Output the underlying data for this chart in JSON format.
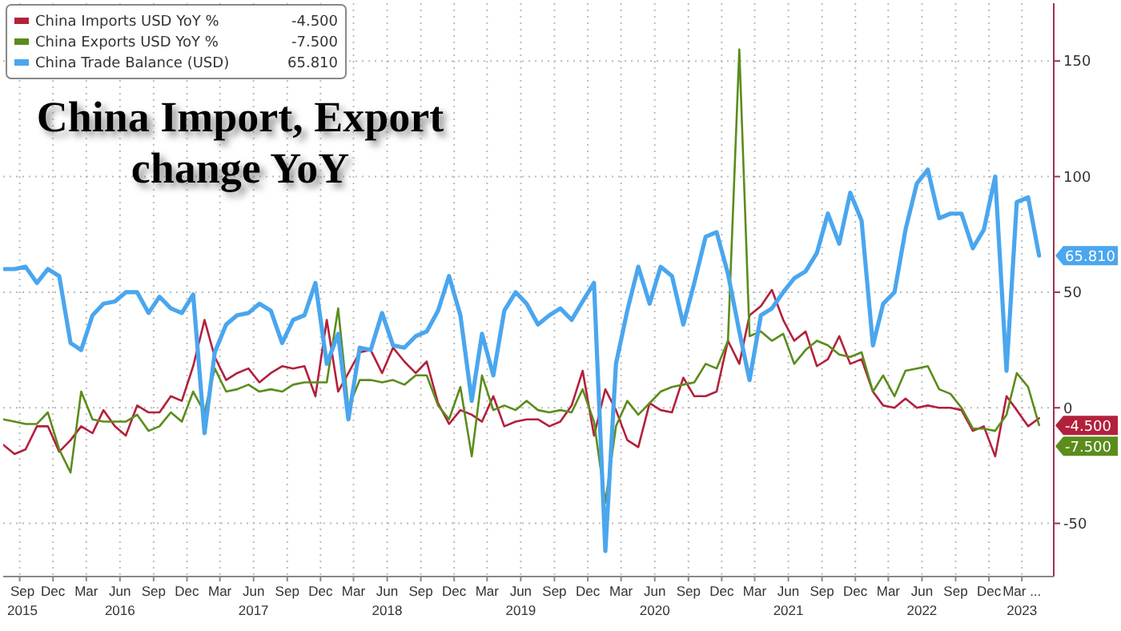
{
  "chart_data": {
    "type": "line",
    "title": "China Import, Export change YoY",
    "x": [
      "2015-08",
      "2015-09",
      "2015-10",
      "2015-11",
      "2015-12",
      "2016-01",
      "2016-02",
      "2016-03",
      "2016-04",
      "2016-05",
      "2016-06",
      "2016-07",
      "2016-08",
      "2016-09",
      "2016-10",
      "2016-11",
      "2016-12",
      "2017-01",
      "2017-02",
      "2017-03",
      "2017-04",
      "2017-05",
      "2017-06",
      "2017-07",
      "2017-08",
      "2017-09",
      "2017-10",
      "2017-11",
      "2017-12",
      "2018-01",
      "2018-02",
      "2018-03",
      "2018-04",
      "2018-05",
      "2018-06",
      "2018-07",
      "2018-08",
      "2018-09",
      "2018-10",
      "2018-11",
      "2018-12",
      "2019-01",
      "2019-02",
      "2019-03",
      "2019-04",
      "2019-05",
      "2019-06",
      "2019-07",
      "2019-08",
      "2019-09",
      "2019-10",
      "2019-11",
      "2019-12",
      "2020-01",
      "2020-02",
      "2020-03",
      "2020-04",
      "2020-05",
      "2020-06",
      "2020-07",
      "2020-08",
      "2020-09",
      "2020-10",
      "2020-11",
      "2020-12",
      "2021-01",
      "2021-02",
      "2021-03",
      "2021-04",
      "2021-05",
      "2021-06",
      "2021-07",
      "2021-08",
      "2021-09",
      "2021-10",
      "2021-11",
      "2021-12",
      "2022-01",
      "2022-02",
      "2022-03",
      "2022-04",
      "2022-05",
      "2022-06",
      "2022-07",
      "2022-08",
      "2022-09",
      "2022-10",
      "2022-11",
      "2022-12",
      "2023-01",
      "2023-02",
      "2023-03",
      "2023-04",
      "2023-05"
    ],
    "series": [
      {
        "name": "China Imports USD YoY %",
        "color": "#b3203c",
        "values": [
          -16,
          -20,
          -18,
          -8,
          -8,
          -19,
          -14,
          -8,
          -11,
          -1,
          -8,
          -12,
          1,
          -2,
          -2,
          5,
          3,
          18,
          38,
          22,
          12,
          15,
          17,
          11,
          15,
          18,
          17,
          18,
          5,
          38,
          7,
          15,
          24,
          25,
          15,
          26,
          20,
          15,
          20,
          2,
          -7,
          -1,
          -3,
          -6,
          5,
          -8,
          -6,
          -5,
          -5,
          -8,
          -6,
          1,
          16,
          -12,
          8,
          -1,
          -14,
          -17,
          2,
          -1,
          -2,
          13,
          5,
          5,
          7,
          29,
          19,
          40,
          44,
          51,
          38,
          29,
          33,
          18,
          21,
          31,
          19,
          21,
          7,
          1,
          0,
          4,
          0,
          1,
          0,
          0,
          -1,
          -10,
          -8,
          -21,
          5,
          -1,
          -8,
          -4.5
        ],
        "value_labels": [
          null,
          null,
          null,
          null,
          null,
          null,
          null,
          null,
          null,
          null,
          null,
          null,
          null,
          null,
          null,
          null,
          null,
          null,
          null,
          null,
          null,
          null,
          null,
          null,
          null,
          null,
          null,
          null,
          null,
          null,
          null,
          null,
          null,
          null,
          null,
          null,
          null,
          null,
          null,
          null,
          null,
          null,
          null,
          null,
          null,
          null,
          null,
          null,
          null,
          null,
          null,
          null,
          null,
          null,
          null,
          null,
          null,
          null,
          null,
          null,
          null,
          null,
          null,
          null,
          null,
          null,
          null,
          null,
          null,
          null,
          null,
          null,
          null,
          null,
          null,
          null,
          null,
          null,
          null,
          null,
          null,
          null,
          null,
          null,
          null,
          null,
          null,
          null,
          null,
          null,
          null,
          null,
          null,
          "-4.500"
        ]
      },
      {
        "name": "China Exports USD YoY %",
        "color": "#5b8c1c",
        "values": [
          -5,
          -6,
          -7,
          -7,
          -2,
          -18,
          -28,
          7,
          -5,
          -6,
          -6,
          -6,
          -3,
          -10,
          -8,
          -2,
          -6,
          7,
          -2,
          17,
          7,
          8,
          10,
          7,
          8,
          7,
          10,
          11,
          11,
          11,
          43,
          0,
          12,
          12,
          11,
          12,
          10,
          14,
          14,
          1,
          -5,
          9,
          -21,
          14,
          -1,
          1,
          -1,
          3,
          -1,
          -2,
          -1,
          -2,
          8,
          -6,
          -41,
          -8,
          3,
          -3,
          2,
          7,
          9,
          10,
          11,
          19,
          17,
          29,
          155,
          31,
          33,
          29,
          32,
          19,
          25,
          29,
          27,
          23,
          22,
          24,
          7,
          14,
          5,
          16,
          17,
          18,
          8,
          6,
          0,
          -9,
          -9,
          -10,
          -3,
          15,
          9,
          -7.5
        ],
        "value_labels": [
          null,
          null,
          null,
          null,
          null,
          null,
          null,
          null,
          null,
          null,
          null,
          null,
          null,
          null,
          null,
          null,
          null,
          null,
          null,
          null,
          null,
          null,
          null,
          null,
          null,
          null,
          null,
          null,
          null,
          null,
          null,
          null,
          null,
          null,
          null,
          null,
          null,
          null,
          null,
          null,
          null,
          null,
          null,
          null,
          null,
          null,
          null,
          null,
          null,
          null,
          null,
          null,
          null,
          null,
          null,
          null,
          null,
          null,
          null,
          null,
          null,
          null,
          null,
          null,
          null,
          null,
          null,
          null,
          null,
          null,
          null,
          null,
          null,
          null,
          null,
          null,
          null,
          null,
          null,
          null,
          null,
          null,
          null,
          null,
          null,
          null,
          null,
          null,
          null,
          null,
          null,
          null,
          null,
          "-7.500"
        ]
      },
      {
        "name": "China Trade Balance (USD)",
        "color": "#4aa6ee",
        "values": [
          60,
          60,
          61,
          54,
          60,
          57,
          28,
          25,
          40,
          45,
          46,
          50,
          50,
          41,
          48,
          43,
          41,
          49,
          -11,
          24,
          36,
          40,
          41,
          45,
          42,
          28,
          38,
          40,
          54,
          19,
          32,
          -5,
          26,
          25,
          41,
          27,
          26,
          31,
          33,
          42,
          57,
          40,
          3,
          32,
          14,
          42,
          50,
          45,
          36,
          40,
          43,
          38,
          46,
          54,
          -62,
          19,
          42,
          61,
          45,
          61,
          57,
          36,
          54,
          74,
          76,
          58,
          33,
          12,
          40,
          43,
          50,
          56,
          59,
          67,
          84,
          71,
          93,
          81,
          27,
          45,
          50,
          77,
          97,
          103,
          82,
          84,
          84,
          69,
          77,
          100,
          16,
          89,
          91,
          65.81
        ],
        "value_labels": [
          null,
          null,
          null,
          null,
          null,
          null,
          null,
          null,
          null,
          null,
          null,
          null,
          null,
          null,
          null,
          null,
          null,
          null,
          null,
          null,
          null,
          null,
          null,
          null,
          null,
          null,
          null,
          null,
          null,
          null,
          null,
          null,
          null,
          null,
          null,
          null,
          null,
          null,
          null,
          null,
          null,
          null,
          null,
          null,
          null,
          null,
          null,
          null,
          null,
          null,
          null,
          null,
          null,
          null,
          null,
          null,
          null,
          null,
          null,
          null,
          null,
          null,
          null,
          null,
          null,
          null,
          null,
          null,
          null,
          null,
          null,
          null,
          null,
          null,
          null,
          null,
          null,
          null,
          null,
          null,
          null,
          null,
          null,
          null,
          null,
          null,
          null,
          null,
          null,
          null,
          null,
          null,
          null,
          "65.810"
        ]
      }
    ],
    "xlim": [
      "2015-08-01",
      "2023-06-10"
    ],
    "xticks": [
      {
        "value": "2015-09-15",
        "label": "Sep\n2015"
      },
      {
        "value": "2015-12-15",
        "label": "Dec"
      },
      {
        "value": "2016-03-15",
        "label": "Mar"
      },
      {
        "value": "2016-06-15",
        "label": "Jun\n2016"
      },
      {
        "value": "2016-09-15",
        "label": "Sep"
      },
      {
        "value": "2016-12-15",
        "label": "Dec"
      },
      {
        "value": "2017-03-15",
        "label": "Mar"
      },
      {
        "value": "2017-06-15",
        "label": "Jun\n2017"
      },
      {
        "value": "2017-09-15",
        "label": "Sep"
      },
      {
        "value": "2017-12-15",
        "label": "Dec"
      },
      {
        "value": "2018-03-15",
        "label": "Mar"
      },
      {
        "value": "2018-06-15",
        "label": "Jun\n2018"
      },
      {
        "value": "2018-09-15",
        "label": "Sep"
      },
      {
        "value": "2018-12-15",
        "label": "Dec"
      },
      {
        "value": "2019-03-15",
        "label": "Mar"
      },
      {
        "value": "2019-06-15",
        "label": "Jun\n2019"
      },
      {
        "value": "2019-09-15",
        "label": "Sep"
      },
      {
        "value": "2019-12-15",
        "label": "Dec"
      },
      {
        "value": "2020-03-15",
        "label": "Mar"
      },
      {
        "value": "2020-06-15",
        "label": "Jun\n2020"
      },
      {
        "value": "2020-09-15",
        "label": "Sep"
      },
      {
        "value": "2020-12-15",
        "label": "Dec"
      },
      {
        "value": "2021-03-15",
        "label": "Mar"
      },
      {
        "value": "2021-06-15",
        "label": "Jun\n2021"
      },
      {
        "value": "2021-09-15",
        "label": "Sep"
      },
      {
        "value": "2021-12-15",
        "label": "Dec"
      },
      {
        "value": "2022-03-15",
        "label": "Mar"
      },
      {
        "value": "2022-06-15",
        "label": "Jun\n2022"
      },
      {
        "value": "2022-09-15",
        "label": "Sep"
      },
      {
        "value": "2022-12-15",
        "label": "Dec"
      },
      {
        "value": "2023-03-15",
        "label": "Mar ...\n2023"
      }
    ],
    "ylim": [
      -73,
      175
    ],
    "yticks": [
      -50,
      0,
      50,
      100,
      150
    ],
    "grid": true,
    "legend": "top left",
    "line_style": "solid",
    "marker": "none"
  }
}
